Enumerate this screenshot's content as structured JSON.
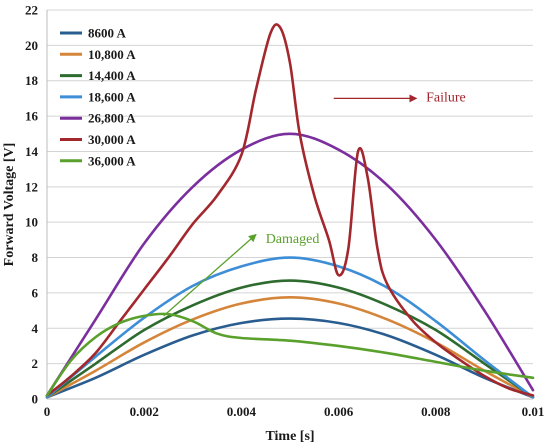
{
  "chart_data": {
    "type": "line",
    "title": "",
    "xlabel": "Time [s]",
    "ylabel": "Forward Voltage [V]",
    "xlim": [
      0,
      0.01
    ],
    "ylim": [
      0,
      22
    ],
    "x_ticks": [
      0,
      0.002,
      0.004,
      0.006,
      0.008,
      0.01
    ],
    "x_tick_labels": [
      "0",
      "0.002",
      "0.004",
      "0.006",
      "0.008",
      "0.01"
    ],
    "y_ticks": [
      0,
      2,
      4,
      6,
      8,
      10,
      12,
      14,
      16,
      18,
      20,
      22
    ],
    "y_tick_labels": [
      "0",
      "2",
      "4",
      "6",
      "8",
      "10",
      "12",
      "14",
      "16",
      "18",
      "20",
      "22"
    ],
    "grid": "horizontal",
    "legend_position": "top-left",
    "series": [
      {
        "name": "8600 A",
        "color": "#2a5d8f",
        "x": [
          0,
          0.001,
          0.002,
          0.003,
          0.004,
          0.005,
          0.006,
          0.007,
          0.008,
          0.009,
          0.01
        ],
        "y": [
          0.1,
          1.2,
          2.5,
          3.6,
          4.3,
          4.55,
          4.3,
          3.6,
          2.5,
          1.2,
          0.1
        ]
      },
      {
        "name": "10,800 A",
        "color": "#d4853a",
        "x": [
          0,
          0.001,
          0.002,
          0.003,
          0.004,
          0.005,
          0.006,
          0.007,
          0.008,
          0.009,
          0.01
        ],
        "y": [
          0.1,
          1.6,
          3.2,
          4.5,
          5.4,
          5.75,
          5.4,
          4.5,
          3.2,
          1.6,
          0.1
        ]
      },
      {
        "name": "14,400 A",
        "color": "#2e6b2e",
        "x": [
          0,
          0.001,
          0.002,
          0.003,
          0.004,
          0.005,
          0.006,
          0.007,
          0.008,
          0.009,
          0.01
        ],
        "y": [
          0.1,
          2.0,
          3.9,
          5.3,
          6.3,
          6.7,
          6.3,
          5.3,
          3.9,
          2.0,
          0.1
        ]
      },
      {
        "name": "18,600 A",
        "color": "#3d8ed6",
        "x": [
          0,
          0.001,
          0.002,
          0.003,
          0.004,
          0.005,
          0.006,
          0.007,
          0.008,
          0.009,
          0.01
        ],
        "y": [
          0.1,
          2.4,
          4.6,
          6.4,
          7.5,
          8.0,
          7.5,
          6.3,
          4.4,
          2.2,
          0.1
        ]
      },
      {
        "name": "26,800 A",
        "color": "#7b2f9e",
        "x": [
          0,
          0.001,
          0.002,
          0.003,
          0.004,
          0.005,
          0.006,
          0.007,
          0.008,
          0.009,
          0.01
        ],
        "y": [
          0.2,
          4.5,
          8.8,
          12.0,
          14.1,
          15.0,
          14.1,
          12.1,
          9.0,
          5.0,
          0.5
        ]
      },
      {
        "name": "30,000 A",
        "color": "#a3282e",
        "x": [
          0,
          0.0005,
          0.001,
          0.0015,
          0.002,
          0.0025,
          0.003,
          0.0035,
          0.004,
          0.0043,
          0.0046,
          0.0048,
          0.005,
          0.0052,
          0.0055,
          0.0058,
          0.006,
          0.0062,
          0.0064,
          0.0066,
          0.0068,
          0.007,
          0.0075,
          0.008,
          0.0085,
          0.009,
          0.0095,
          0.01
        ],
        "y": [
          0.2,
          1.3,
          2.6,
          4.4,
          6.2,
          8.0,
          9.9,
          11.5,
          13.8,
          17.5,
          20.7,
          21.0,
          19.0,
          15.0,
          11.5,
          9.0,
          7.0,
          8.5,
          14.0,
          12.5,
          8.5,
          6.5,
          4.5,
          3.2,
          2.2,
          1.3,
          0.6,
          0.2
        ]
      },
      {
        "name": "36,000 A",
        "color": "#5aa02c",
        "x": [
          0,
          0.0005,
          0.001,
          0.0015,
          0.002,
          0.0025,
          0.003,
          0.0035,
          0.004,
          0.005,
          0.006,
          0.007,
          0.008,
          0.009,
          0.01
        ],
        "y": [
          0.2,
          2.2,
          3.5,
          4.3,
          4.7,
          4.8,
          4.4,
          3.7,
          3.45,
          3.3,
          3.0,
          2.6,
          2.1,
          1.6,
          1.2
        ]
      }
    ],
    "annotations": [
      {
        "text": "Failure",
        "color": "#a3282e",
        "x": 0.0078,
        "y": 17.1,
        "arrow_from": [
          0.0059,
          17.0
        ],
        "arrow_to": [
          0.0076,
          17.0
        ]
      },
      {
        "text": "Damaged",
        "color": "#5aa02c",
        "x": 0.0045,
        "y": 9.1,
        "arrow_from": [
          0.0024,
          4.7
        ],
        "arrow_to": [
          0.0043,
          9.3
        ]
      }
    ]
  }
}
